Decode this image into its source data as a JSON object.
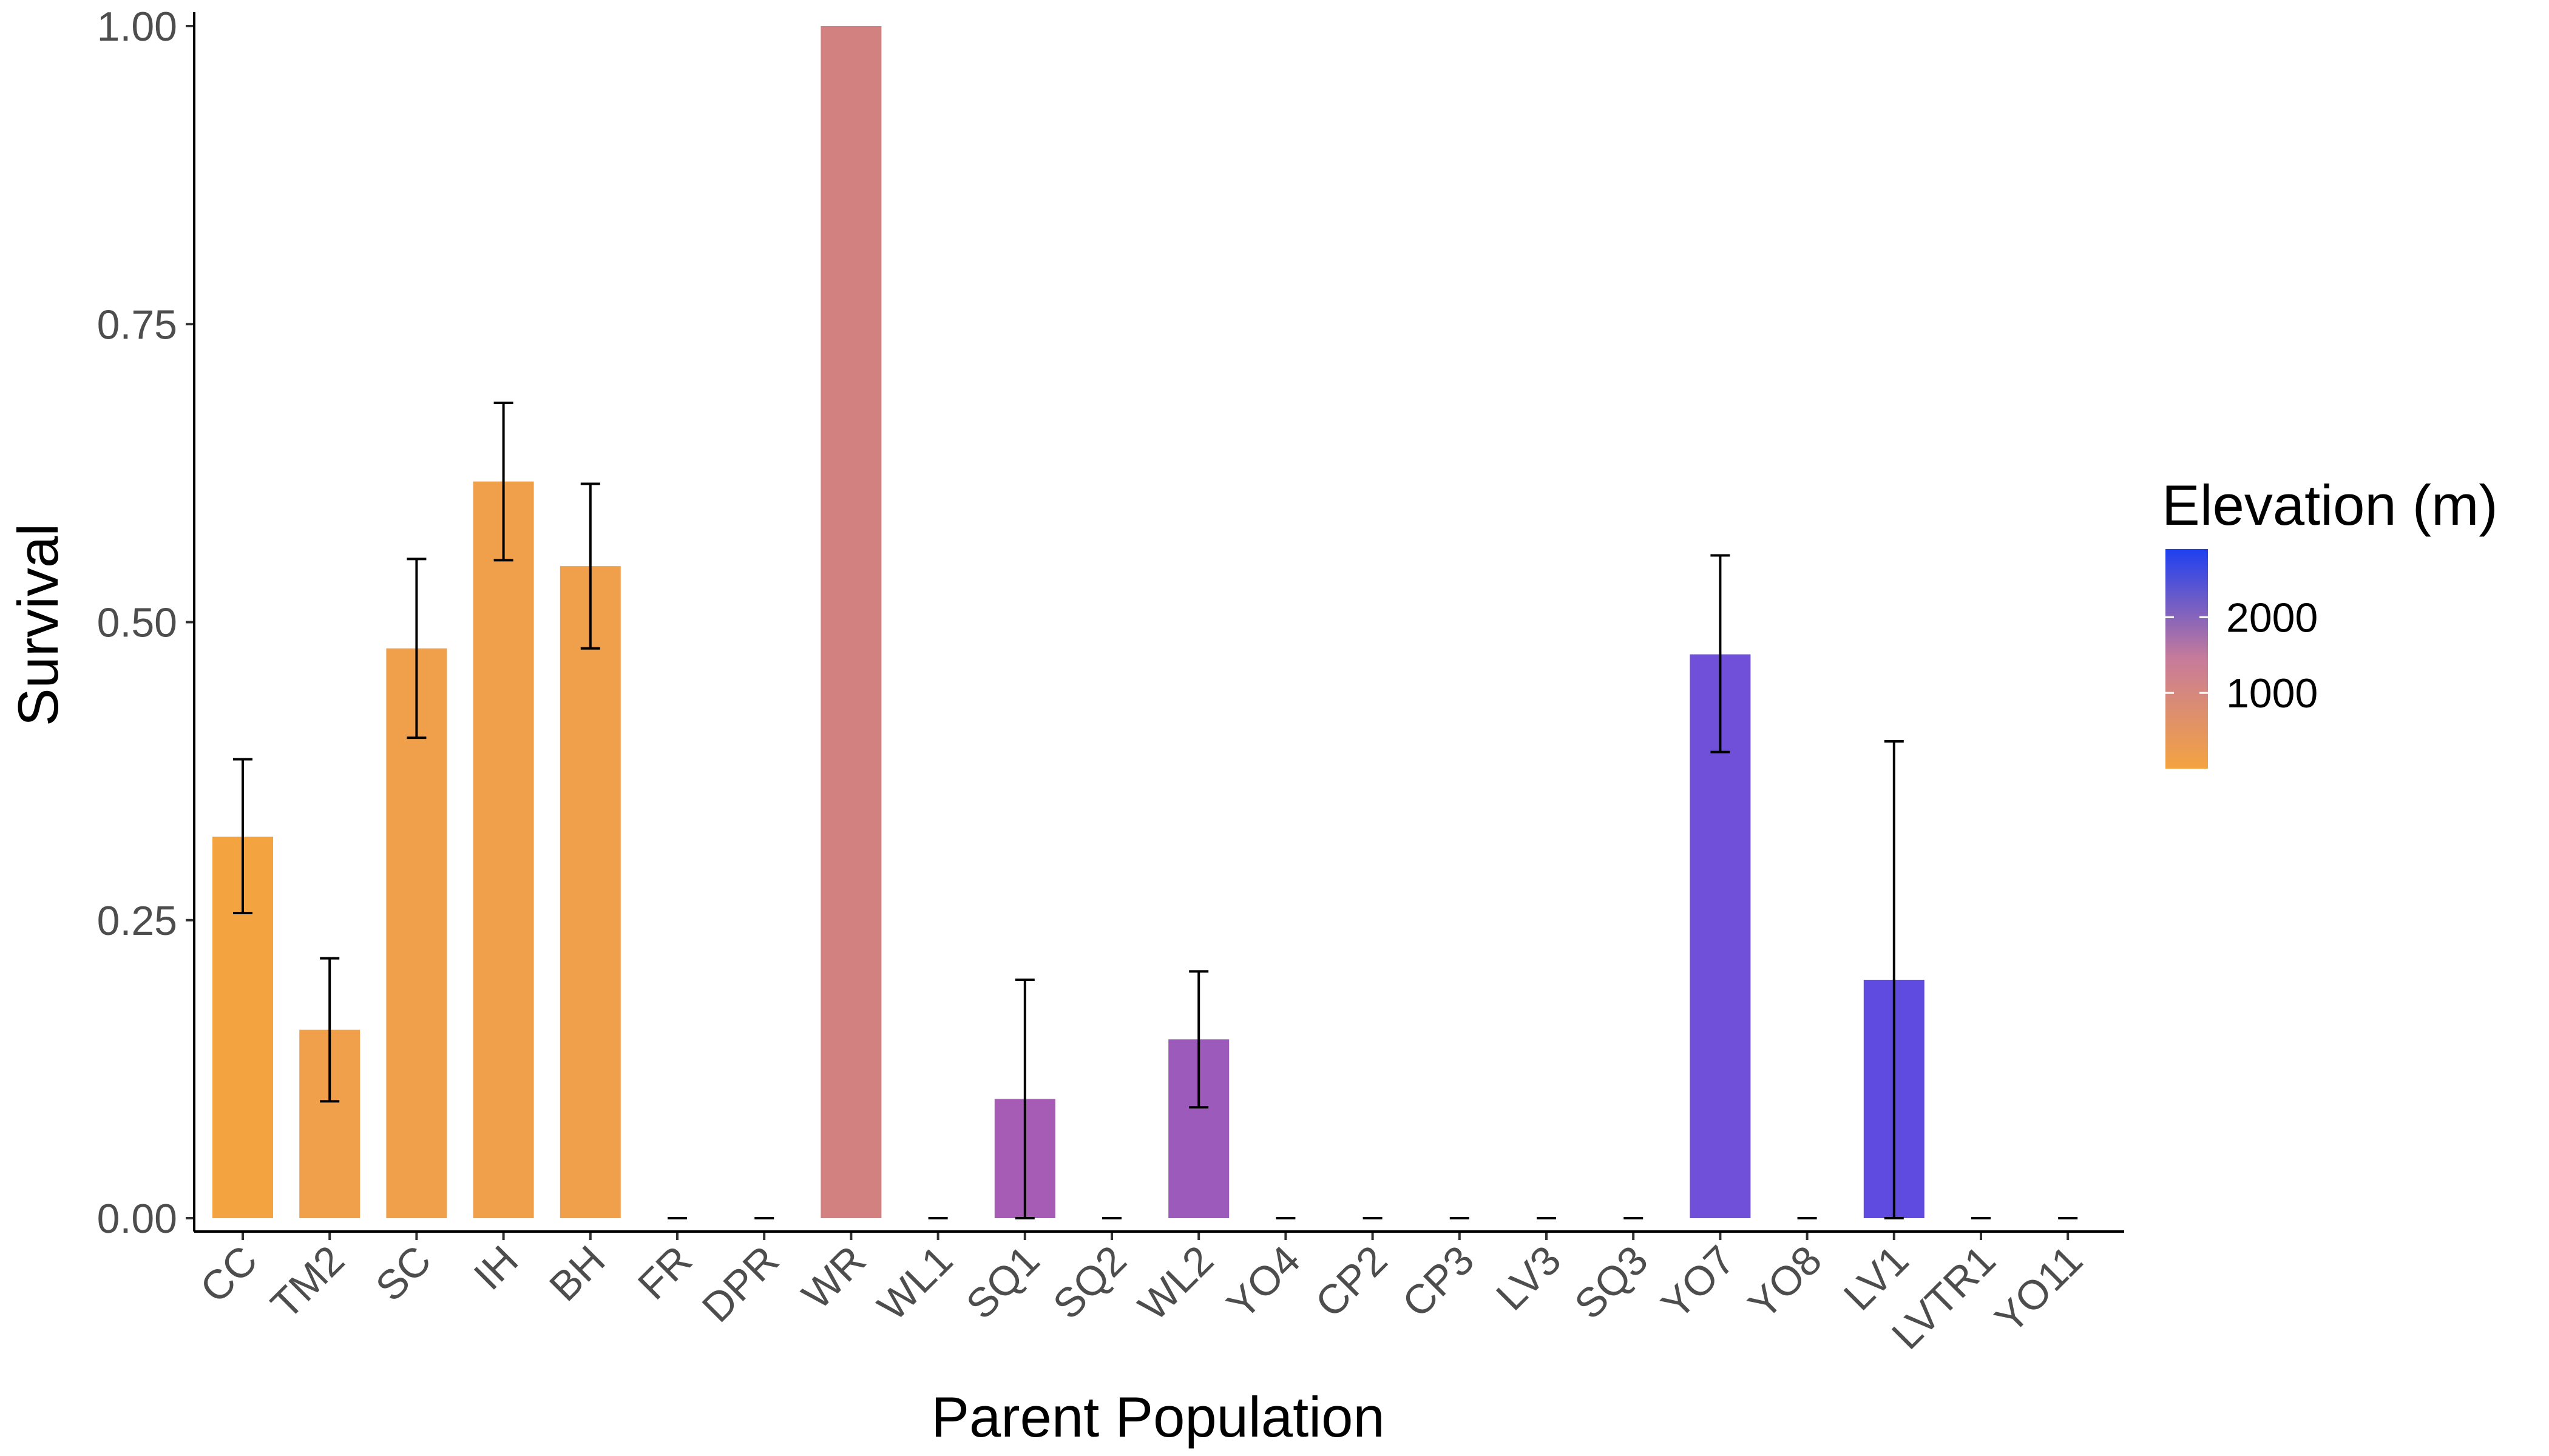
{
  "chart_data": {
    "type": "bar",
    "title": "",
    "xlabel": "Parent Population",
    "ylabel": "Survival",
    "ylim": [
      0,
      1
    ],
    "y_ticks": [
      "0.00",
      "0.25",
      "0.50",
      "0.75",
      "1.00"
    ],
    "y_tick_values": [
      0,
      0.25,
      0.5,
      0.75,
      1.0
    ],
    "categories": [
      "CC",
      "TM2",
      "SC",
      "IH",
      "BH",
      "FR",
      "DPR",
      "WR",
      "WL1",
      "SQ1",
      "SQ2",
      "WL2",
      "YO4",
      "CP2",
      "CP3",
      "LV3",
      "SQ3",
      "YO7",
      "YO8",
      "LV1",
      "LVTR1",
      "YO11"
    ],
    "values": [
      0.32,
      0.158,
      0.478,
      0.618,
      0.547,
      0,
      0,
      1.0,
      0,
      0.1,
      0,
      0.15,
      0,
      0,
      0,
      0,
      0,
      0.473,
      0,
      0.2,
      0,
      0
    ],
    "error_low": [
      0.256,
      0.098,
      0.403,
      0.552,
      0.478,
      0,
      0,
      1.0,
      0,
      0.0,
      0,
      0.093,
      0,
      0,
      0,
      0,
      0,
      0.391,
      0,
      0.0,
      0,
      0
    ],
    "error_high": [
      0.385,
      0.218,
      0.553,
      0.684,
      0.616,
      0,
      0,
      1.0,
      0,
      0.2,
      0,
      0.207,
      0,
      0,
      0,
      0,
      0,
      0.556,
      0,
      0.4,
      0,
      0
    ],
    "bar_colors": [
      "#F4A341",
      "#F0A04B",
      "#F0A04B",
      "#F0A04B",
      "#F0A04B",
      "#F0A04B",
      "#E79B5A",
      "#D28080",
      "#B86AA0",
      "#A65BB5",
      "#A65BB5",
      "#9C5BBA",
      "#8E55C5",
      "#8A55C8",
      "#8554CA",
      "#8153CC",
      "#7E52CF",
      "#7050D8",
      "#6F4FDA",
      "#5F4BE0",
      "#5E4AE2",
      "#5C4AE4"
    ],
    "legend": {
      "title": "Elevation (m)",
      "labels": [
        "2000",
        "1000"
      ],
      "values": [
        2000,
        1000
      ],
      "range": [
        0,
        2900
      ],
      "color_low": "#F4A341",
      "color_mid": "#C77B9A",
      "color_high": "#1E40F0"
    },
    "grid": false,
    "legend_position": "right"
  }
}
